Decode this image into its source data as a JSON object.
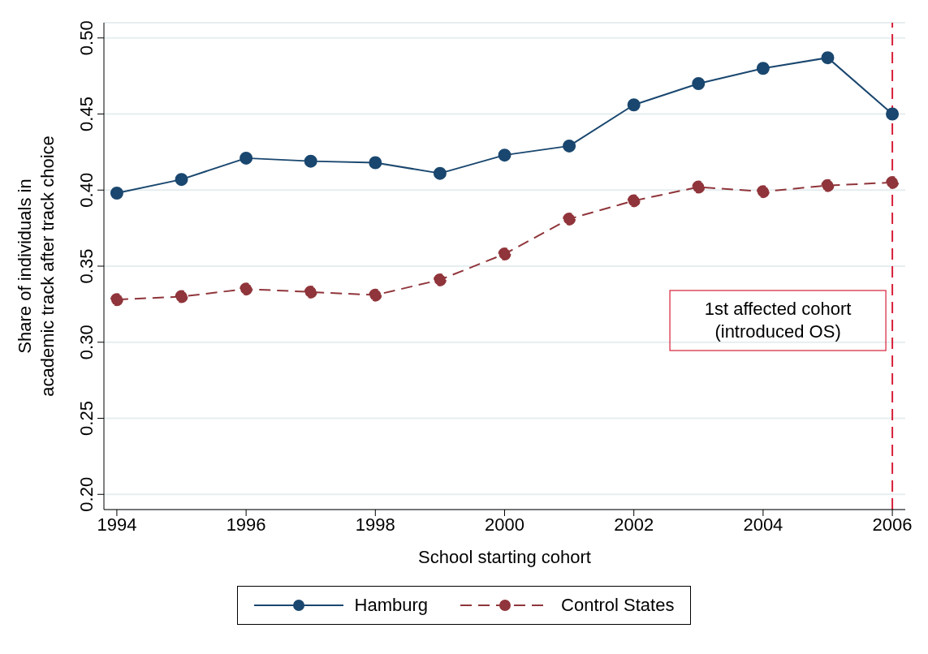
{
  "chart_data": {
    "type": "line",
    "xlabel": "School starting cohort",
    "ylabel": "Share of individuals in\nacademic track after track choice",
    "x": [
      1994,
      1995,
      1996,
      1997,
      1998,
      1999,
      2000,
      2001,
      2002,
      2003,
      2004,
      2005,
      2006
    ],
    "series": [
      {
        "name": "Hamburg",
        "color": "#1a476f",
        "line_style": "solid",
        "values": [
          0.398,
          0.407,
          0.421,
          0.419,
          0.418,
          0.411,
          0.423,
          0.429,
          0.456,
          0.47,
          0.48,
          0.487,
          0.45
        ]
      },
      {
        "name": "Control States",
        "color": "#90353b",
        "line_style": "dashed",
        "values": [
          0.328,
          0.33,
          0.335,
          0.333,
          0.331,
          0.341,
          0.358,
          0.381,
          0.393,
          0.402,
          0.399,
          0.403,
          0.405
        ]
      }
    ],
    "xlim": [
      1993.8,
      2006.2
    ],
    "xticks": [
      1994,
      1996,
      1998,
      2000,
      2002,
      2004,
      2006
    ],
    "ylim": [
      0.19,
      0.51
    ],
    "yticks": [
      {
        "value": 0.2,
        "label": "0.20"
      },
      {
        "value": 0.25,
        "label": "0.25"
      },
      {
        "value": 0.3,
        "label": "0.30"
      },
      {
        "value": 0.35,
        "label": "0.35"
      },
      {
        "value": 0.4,
        "label": "0.40"
      },
      {
        "value": 0.45,
        "label": "0.45"
      },
      {
        "value": 0.5,
        "label": "0.50"
      }
    ],
    "ref_lines": [
      {
        "axis": "x",
        "value": 2006,
        "label": "1st affected cohort\n(introduced OS)",
        "color": "#d62039",
        "line_style": "dashed"
      }
    ],
    "grid": "y",
    "legend": "bottom",
    "marker": "circle"
  }
}
